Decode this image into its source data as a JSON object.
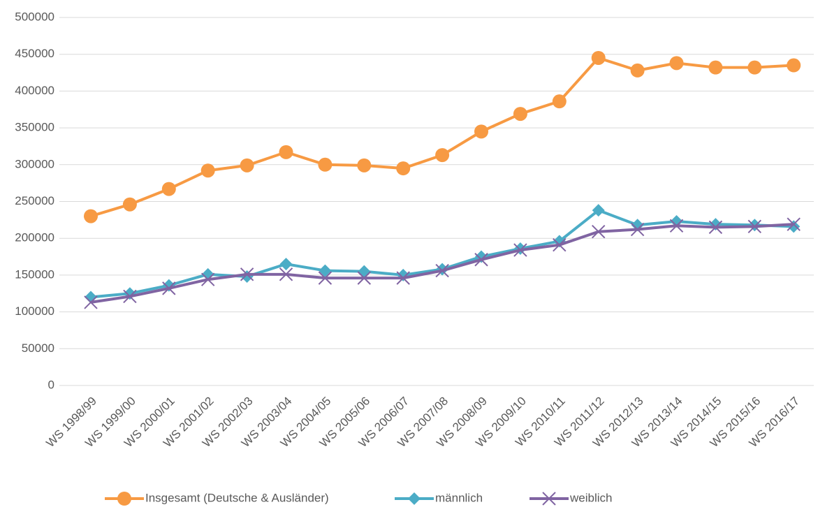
{
  "chart_data": {
    "type": "line",
    "categories": [
      "WS 1998/99",
      "WS 1999/00",
      "WS 2000/01",
      "WS 2001/02",
      "WS 2002/03",
      "WS 2003/04",
      "WS 2004/05",
      "WS 2005/06",
      "WS 2006/07",
      "WS 2007/08",
      "WS 2008/09",
      "WS 2009/10",
      "WS 2010/11",
      "WS 2011/12",
      "WS 2012/13",
      "WS 2013/14",
      "WS 2014/15",
      "WS 2015/16",
      "WS 2016/17"
    ],
    "series": [
      {
        "name": "Insgesamt (Deutsche & Ausländer)",
        "color": "#f79a43",
        "marker": "circle",
        "values": [
          230000,
          246000,
          267000,
          292000,
          299000,
          317000,
          300000,
          299000,
          295000,
          313000,
          345000,
          369000,
          386000,
          445000,
          428000,
          438000,
          432000,
          432000,
          435000
        ]
      },
      {
        "name": "männlich",
        "color": "#4bacc6",
        "marker": "diamond",
        "values": [
          120000,
          125000,
          136000,
          151000,
          148000,
          165000,
          156000,
          155000,
          150000,
          158000,
          175000,
          186000,
          196000,
          238000,
          218000,
          223000,
          219000,
          218000,
          216000
        ]
      },
      {
        "name": "weiblich",
        "color": "#8064a2",
        "marker": "x",
        "values": [
          113000,
          121000,
          132000,
          144000,
          151000,
          151000,
          146000,
          146000,
          146000,
          156000,
          171000,
          184000,
          191000,
          209000,
          212000,
          217000,
          215000,
          216000,
          219000
        ]
      }
    ],
    "ylim": [
      0,
      500000
    ],
    "yticks": [
      0,
      50000,
      100000,
      150000,
      200000,
      250000,
      300000,
      350000,
      400000,
      450000,
      500000
    ],
    "grid": true,
    "legend": "bottom"
  }
}
